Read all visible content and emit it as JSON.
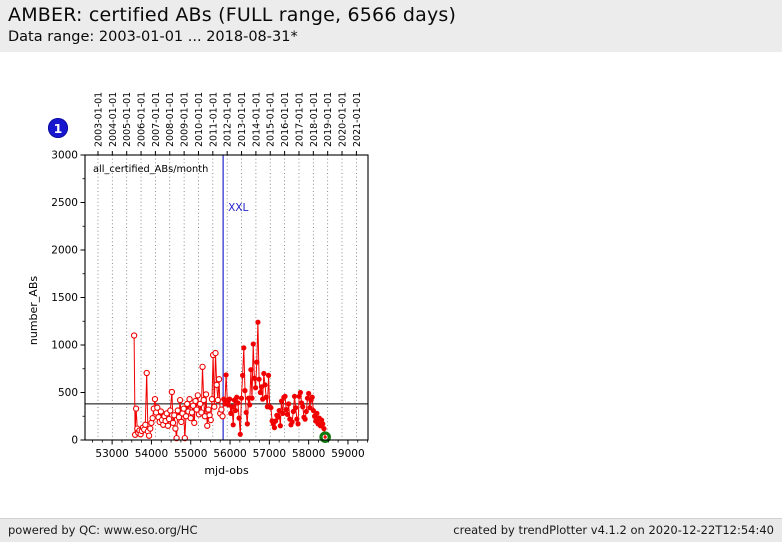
{
  "header": {
    "title": "AMBER: certified ABs (FULL range, 6566 days)",
    "subtitle": "Data range: 2003-01-01 ... 2018-08-31*"
  },
  "annotation_badge": {
    "label": "1",
    "color": "#1717cf"
  },
  "footer": {
    "left": "powered by QC: www.eso.org/HC",
    "right": "created by trendPlotter v4.1.2 on 2020-12-22T12:54:40"
  },
  "chart_data": {
    "type": "line",
    "series_label": "all_certified_ABs/month",
    "xlabel": "mjd-obs",
    "ylabel": "number_ABs",
    "xlim": [
      52310,
      59510
    ],
    "ylim": [
      0,
      3000
    ],
    "x_ticks": [
      53000,
      54000,
      55000,
      56000,
      57000,
      58000,
      59000
    ],
    "y_ticks": [
      0,
      500,
      1000,
      1500,
      2000,
      2500,
      3000
    ],
    "x_minor_step": 250,
    "y_minor_step": 250,
    "grid": "vertical dotted lines at each year",
    "top_axis": [
      [
        "2003-01-01",
        52640
      ],
      [
        "2004-01-01",
        53005
      ],
      [
        "2005-01-01",
        53371
      ],
      [
        "2006-01-01",
        53736
      ],
      [
        "2007-01-01",
        54101
      ],
      [
        "2008-01-01",
        54466
      ],
      [
        "2009-01-01",
        54832
      ],
      [
        "2010-01-01",
        55197
      ],
      [
        "2011-01-01",
        55562
      ],
      [
        "2012-01-01",
        55927
      ],
      [
        "2013-01-01",
        56293
      ],
      [
        "2014-01-01",
        56658
      ],
      [
        "2015-01-01",
        57023
      ],
      [
        "2016-01-01",
        57388
      ],
      [
        "2017-01-01",
        57754
      ],
      [
        "2018-01-01",
        58119
      ],
      [
        "2019-01-01",
        58484
      ],
      [
        "2020-01-01",
        58849
      ],
      [
        "2021-01-01",
        59215
      ]
    ],
    "reference_line_y": 380,
    "event_line": {
      "x": 55824,
      "label": "XXL",
      "color": "#2424cc"
    },
    "last_point": {
      "x": 58420,
      "y": 30,
      "marker": "green-ring",
      "color": "#117a11"
    },
    "series": [
      {
        "name": "all_certified_ABs/month",
        "color": "#f00000",
        "marker_open_before_x": 55824,
        "points": [
          [
            53560,
            1100
          ],
          [
            53585,
            55
          ],
          [
            53610,
            330
          ],
          [
            53640,
            120
          ],
          [
            53665,
            75
          ],
          [
            53695,
            100
          ],
          [
            53725,
            60
          ],
          [
            53755,
            95
          ],
          [
            53785,
            130
          ],
          [
            53815,
            110
          ],
          [
            53845,
            160
          ],
          [
            53880,
            705
          ],
          [
            53910,
            90
          ],
          [
            53940,
            45
          ],
          [
            53970,
            120
          ],
          [
            54000,
            180
          ],
          [
            54030,
            230
          ],
          [
            54060,
            330
          ],
          [
            54090,
            430
          ],
          [
            54120,
            290
          ],
          [
            54150,
            340
          ],
          [
            54180,
            240
          ],
          [
            54210,
            190
          ],
          [
            54240,
            300
          ],
          [
            54270,
            210
          ],
          [
            54300,
            160
          ],
          [
            54330,
            250
          ],
          [
            54360,
            200
          ],
          [
            54390,
            280
          ],
          [
            54420,
            150
          ],
          [
            54450,
            220
          ],
          [
            54480,
            310
          ],
          [
            54520,
            505
          ],
          [
            54550,
            180
          ],
          [
            54580,
            260
          ],
          [
            54610,
            120
          ],
          [
            54640,
            20
          ],
          [
            54670,
            310
          ],
          [
            54700,
            240
          ],
          [
            54730,
            420
          ],
          [
            54760,
            190
          ],
          [
            54790,
            280
          ],
          [
            54820,
            330
          ],
          [
            54850,
            20
          ],
          [
            54880,
            250
          ],
          [
            54910,
            380
          ],
          [
            54940,
            300
          ],
          [
            54970,
            430
          ],
          [
            55000,
            230
          ],
          [
            55030,
            290
          ],
          [
            55060,
            360
          ],
          [
            55090,
            180
          ],
          [
            55120,
            410
          ],
          [
            55150,
            320
          ],
          [
            55180,
            470
          ],
          [
            55210,
            270
          ],
          [
            55240,
            380
          ],
          [
            55270,
            290
          ],
          [
            55300,
            770
          ],
          [
            55330,
            420
          ],
          [
            55360,
            250
          ],
          [
            55390,
            480
          ],
          [
            55420,
            150
          ],
          [
            55450,
            320
          ],
          [
            55480,
            260
          ],
          [
            55510,
            210
          ],
          [
            55540,
            430
          ],
          [
            55570,
            895
          ],
          [
            55600,
            350
          ],
          [
            55630,
            915
          ],
          [
            55660,
            580
          ],
          [
            55690,
            420
          ],
          [
            55720,
            640
          ],
          [
            55750,
            280
          ],
          [
            55780,
            320
          ],
          [
            55810,
            250
          ],
          [
            55840,
            430
          ],
          [
            55870,
            380
          ],
          [
            55900,
            685
          ],
          [
            55930,
            420
          ],
          [
            55960,
            370
          ],
          [
            55990,
            430
          ],
          [
            56020,
            280
          ],
          [
            56050,
            350
          ],
          [
            56080,
            160
          ],
          [
            56110,
            420
          ],
          [
            56140,
            310
          ],
          [
            56170,
            450
          ],
          [
            56200,
            390
          ],
          [
            56230,
            230
          ],
          [
            56260,
            60
          ],
          [
            56290,
            440
          ],
          [
            56320,
            680
          ],
          [
            56350,
            970
          ],
          [
            56380,
            520
          ],
          [
            56410,
            290
          ],
          [
            56440,
            170
          ],
          [
            56470,
            440
          ],
          [
            56500,
            370
          ],
          [
            56530,
            740
          ],
          [
            56560,
            440
          ],
          [
            56590,
            1010
          ],
          [
            56620,
            650
          ],
          [
            56650,
            550
          ],
          [
            56680,
            820
          ],
          [
            56710,
            1240
          ],
          [
            56740,
            640
          ],
          [
            56770,
            500
          ],
          [
            56800,
            560
          ],
          [
            56830,
            430
          ],
          [
            56860,
            700
          ],
          [
            56890,
            580
          ],
          [
            56920,
            450
          ],
          [
            56950,
            350
          ],
          [
            56980,
            680
          ],
          [
            57010,
            350
          ],
          [
            57040,
            340
          ],
          [
            57070,
            200
          ],
          [
            57100,
            170
          ],
          [
            57130,
            130
          ],
          [
            57160,
            200
          ],
          [
            57190,
            260
          ],
          [
            57220,
            240
          ],
          [
            57250,
            310
          ],
          [
            57280,
            150
          ],
          [
            57310,
            410
          ],
          [
            57340,
            280
          ],
          [
            57370,
            450
          ],
          [
            57400,
            460
          ],
          [
            57430,
            320
          ],
          [
            57460,
            270
          ],
          [
            57490,
            380
          ],
          [
            57520,
            220
          ],
          [
            57550,
            160
          ],
          [
            57580,
            190
          ],
          [
            57610,
            300
          ],
          [
            57640,
            460
          ],
          [
            57670,
            340
          ],
          [
            57700,
            220
          ],
          [
            57730,
            170
          ],
          [
            57760,
            460
          ],
          [
            57790,
            500
          ],
          [
            57820,
            390
          ],
          [
            57850,
            350
          ],
          [
            57880,
            240
          ],
          [
            57910,
            220
          ],
          [
            57940,
            300
          ],
          [
            57970,
            440
          ],
          [
            58000,
            490
          ],
          [
            58030,
            340
          ],
          [
            58060,
            420
          ],
          [
            58090,
            450
          ],
          [
            58120,
            310
          ],
          [
            58150,
            250
          ],
          [
            58180,
            200
          ],
          [
            58210,
            280
          ],
          [
            58240,
            170
          ],
          [
            58270,
            230
          ],
          [
            58300,
            150
          ],
          [
            58330,
            210
          ],
          [
            58360,
            170
          ],
          [
            58390,
            120
          ],
          [
            58420,
            30
          ]
        ]
      }
    ]
  }
}
